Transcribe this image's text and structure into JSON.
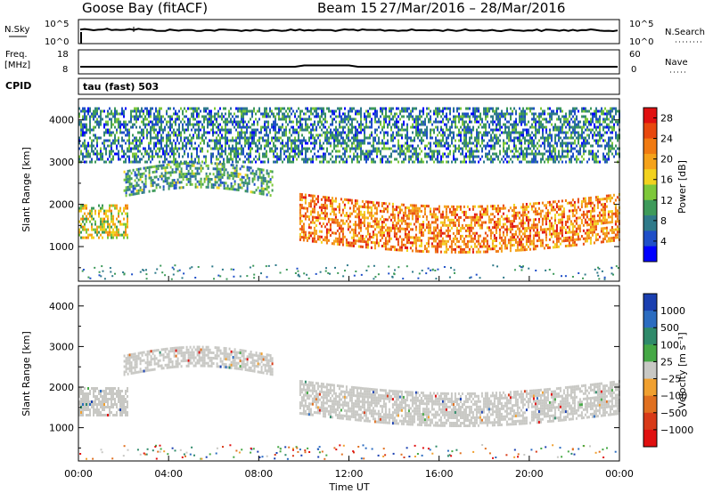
{
  "header": {
    "title": "Goose Bay (fitACF)",
    "beam": "Beam 15",
    "date_range": "27/Mar/2016 – 28/Mar/2016"
  },
  "noise_panel": {
    "left_label": "N.Sky",
    "right_label": "N.Search",
    "left_ticks": [
      "10^5",
      "10^0"
    ],
    "right_ticks": [
      "10^5",
      "10^0"
    ]
  },
  "freq_panel": {
    "left_label_1": "Freq.",
    "left_label_2": "[MHz]",
    "right_label": "Nave",
    "left_ticks": [
      "18",
      "8"
    ],
    "right_ticks": [
      "60",
      "0"
    ]
  },
  "cpid": {
    "label": "CPID",
    "value": "tau (fast) 503"
  },
  "colors": {
    "power_scale": [
      "#0000ff",
      "#1f4fc8",
      "#2f7a8a",
      "#3e9a5a",
      "#7ec83a",
      "#f2d21e",
      "#f5a21a",
      "#f07a12",
      "#e8480e",
      "#e01010"
    ],
    "velocity_scale": [
      "#1a3fb0",
      "#2b6cc0",
      "#2f8a6a",
      "#45a845",
      "#c8c8c4",
      "#f0a030",
      "#e07020",
      "#d83a18",
      "#e01010"
    ],
    "ground_scatter": "#c8c8c4"
  },
  "chart_data": [
    {
      "type": "heatmap",
      "name": "power",
      "xlabel": "Time UT",
      "ylabel": "Slant Range [km]",
      "xlim": [
        0,
        24
      ],
      "ylim": [
        180,
        4500
      ],
      "x_ticks": [
        "00:00",
        "04:00",
        "08:00",
        "12:00",
        "16:00",
        "20:00",
        "00:00"
      ],
      "y_ticks": [
        1000,
        2000,
        3000,
        4000
      ],
      "colorbar": {
        "label": "Power [dB]",
        "range": [
          0,
          30
        ],
        "ticks": [
          4,
          8,
          12,
          16,
          20,
          24,
          28
        ]
      },
      "features": [
        {
          "feature": "near-range band",
          "x_range_h": [
            0.0,
            2.2
          ],
          "y_range_km": [
            1200,
            2000
          ],
          "typical_db": 16
        },
        {
          "feature": "upper arc",
          "x_range_h": [
            2.0,
            8.6
          ],
          "y_range_km": [
            2200,
            2800
          ],
          "typical_db": 10
        },
        {
          "feature": "main echo band",
          "x_range_h": [
            9.8,
            24.0
          ],
          "y_range_km": [
            1000,
            2100
          ],
          "typical_db": 22
        },
        {
          "feature": "sparse far range",
          "x_range_h": [
            0.0,
            24.0
          ],
          "y_range_km": [
            3000,
            4300
          ],
          "typical_db": 8
        }
      ]
    },
    {
      "type": "heatmap",
      "name": "velocity",
      "xlabel": "Time UT",
      "ylabel": "Slant Range [km]",
      "xlim": [
        0,
        24
      ],
      "ylim": [
        180,
        4500
      ],
      "x_ticks": [
        "00:00",
        "04:00",
        "08:00",
        "12:00",
        "16:00",
        "20:00",
        "00:00"
      ],
      "y_ticks": [
        1000,
        2000,
        3000,
        4000
      ],
      "colorbar": {
        "label": "Velocity [m s⁻¹]",
        "ticks": [
          "1000",
          "500",
          "100",
          "25",
          "−25",
          "−100",
          "−500",
          "−1000"
        ]
      },
      "features": [
        {
          "feature": "ground scatter band",
          "x_range_h": [
            0.0,
            2.2
          ],
          "y_range_km": [
            1300,
            2000
          ],
          "typical_ms": 0
        },
        {
          "feature": "ground scatter arc",
          "x_range_h": [
            2.0,
            8.6
          ],
          "y_range_km": [
            2300,
            2800
          ],
          "typical_ms": 0
        },
        {
          "feature": "ground scatter main band",
          "x_range_h": [
            9.8,
            24.0
          ],
          "y_range_km": [
            1200,
            2000
          ],
          "typical_ms": 0
        }
      ]
    }
  ]
}
